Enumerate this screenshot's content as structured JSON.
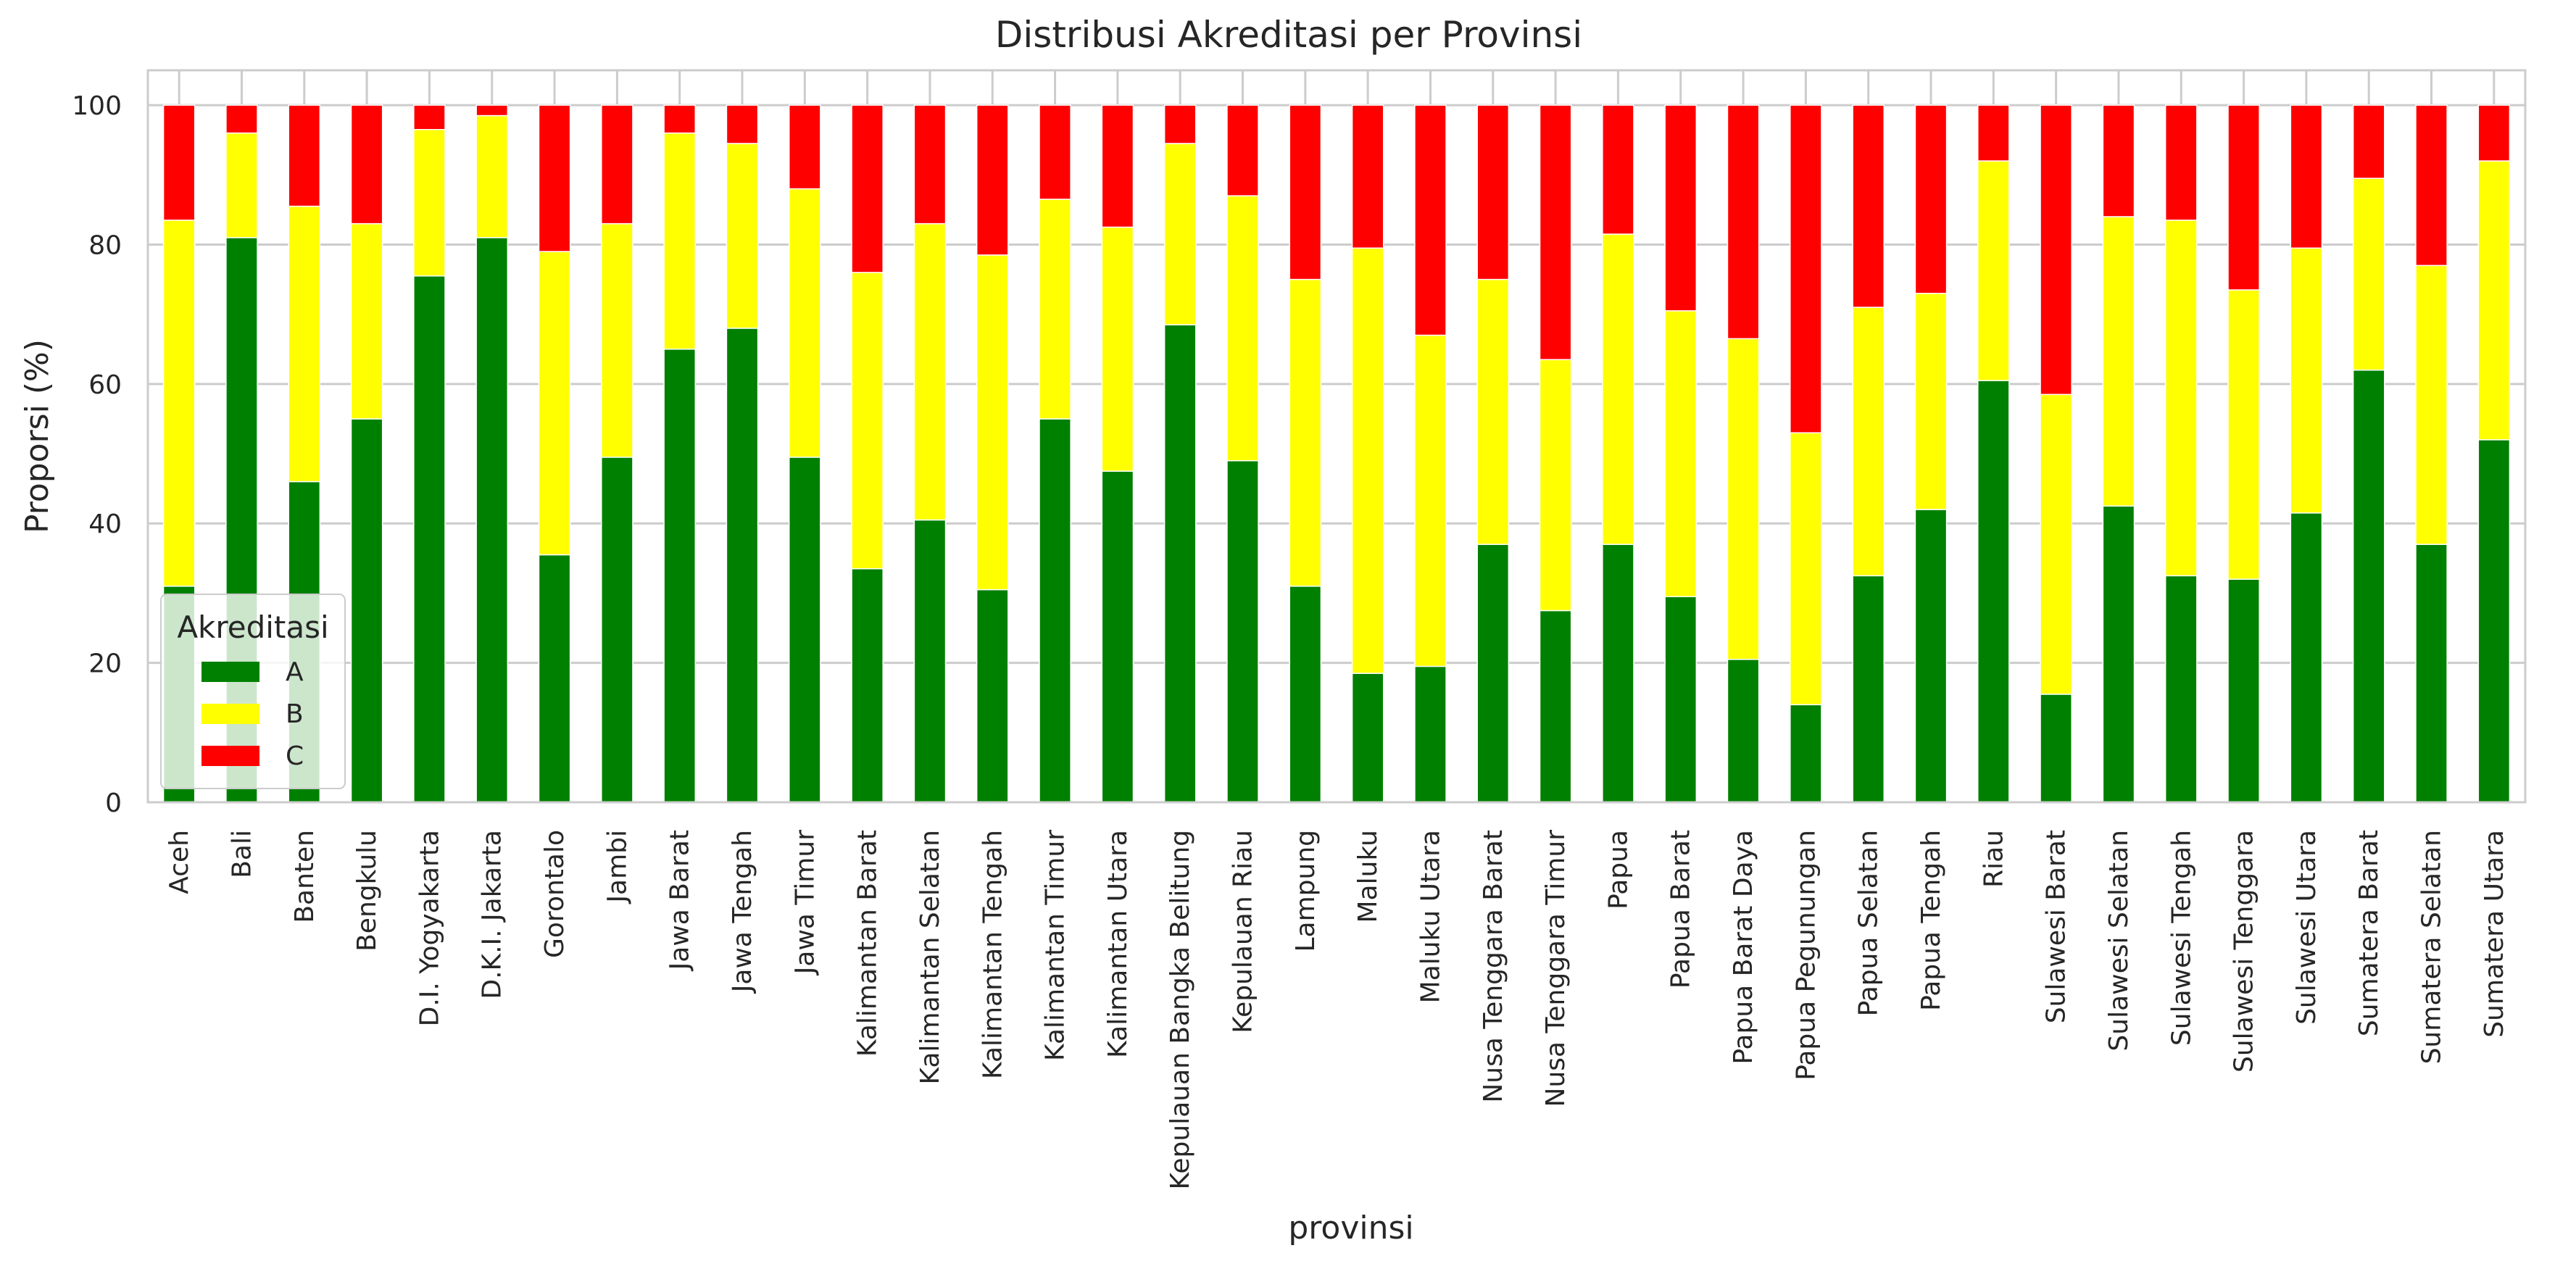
{
  "chart_data": {
    "type": "bar",
    "stacked": true,
    "title": "Distribusi Akreditasi per Provinsi",
    "xlabel": "provinsi",
    "ylabel": "Proporsi (%)",
    "ylim": [
      0,
      105
    ],
    "yticks": [
      0,
      20,
      40,
      60,
      80,
      100
    ],
    "grid": true,
    "legend": {
      "title": "Akreditasi",
      "position": "lower-left"
    },
    "categories": [
      "Aceh",
      "Bali",
      "Banten",
      "Bengkulu",
      "D.I. Yogyakarta",
      "D.K.I. Jakarta",
      "Gorontalo",
      "Jambi",
      "Jawa Barat",
      "Jawa Tengah",
      "Jawa Timur",
      "Kalimantan Barat",
      "Kalimantan Selatan",
      "Kalimantan Tengah",
      "Kalimantan Timur",
      "Kalimantan Utara",
      "Kepulauan Bangka Belitung",
      "Kepulauan Riau",
      "Lampung",
      "Maluku",
      "Maluku Utara",
      "Nusa Tenggara Barat",
      "Nusa Tenggara Timur",
      "Papua",
      "Papua Barat",
      "Papua Barat Daya",
      "Papua Pegunungan",
      "Papua Selatan",
      "Papua Tengah",
      "Riau",
      "Sulawesi Barat",
      "Sulawesi Selatan",
      "Sulawesi Tengah",
      "Sulawesi Tenggara",
      "Sulawesi Utara",
      "Sumatera Barat",
      "Sumatera Selatan",
      "Sumatera Utara"
    ],
    "series": [
      {
        "name": "A",
        "color": "#008000",
        "values": [
          31.0,
          81.0,
          46.0,
          55.0,
          75.5,
          81.0,
          35.5,
          49.5,
          65.0,
          68.0,
          49.5,
          33.5,
          40.5,
          30.5,
          55.0,
          47.5,
          68.5,
          49.0,
          31.0,
          18.5,
          19.5,
          37.0,
          27.5,
          37.0,
          29.5,
          20.5,
          14.0,
          32.5,
          42.0,
          60.5,
          15.5,
          42.5,
          32.5,
          32.0,
          41.5,
          62.0,
          37.0,
          52.0
        ]
      },
      {
        "name": "B",
        "color": "#ffff00",
        "values": [
          52.5,
          15.0,
          39.5,
          28.0,
          21.0,
          17.5,
          43.5,
          33.5,
          31.0,
          26.5,
          38.5,
          42.5,
          42.5,
          48.0,
          31.5,
          35.0,
          26.0,
          38.0,
          44.0,
          61.0,
          47.5,
          38.0,
          36.0,
          44.5,
          41.0,
          46.0,
          39.0,
          38.5,
          31.0,
          31.5,
          43.0,
          41.5,
          51.0,
          41.5,
          38.0,
          27.5,
          40.0,
          40.0
        ]
      },
      {
        "name": "C",
        "color": "#ff0000",
        "values": [
          16.5,
          4.0,
          14.5,
          17.0,
          3.5,
          1.5,
          21.0,
          17.0,
          4.0,
          5.5,
          12.0,
          24.0,
          17.0,
          21.5,
          13.5,
          17.5,
          5.5,
          13.0,
          25.0,
          20.5,
          33.0,
          25.0,
          36.5,
          18.5,
          29.5,
          33.5,
          47.0,
          29.0,
          27.0,
          8.0,
          41.5,
          16.0,
          16.5,
          26.5,
          20.5,
          10.5,
          23.0,
          8.0
        ]
      }
    ]
  }
}
